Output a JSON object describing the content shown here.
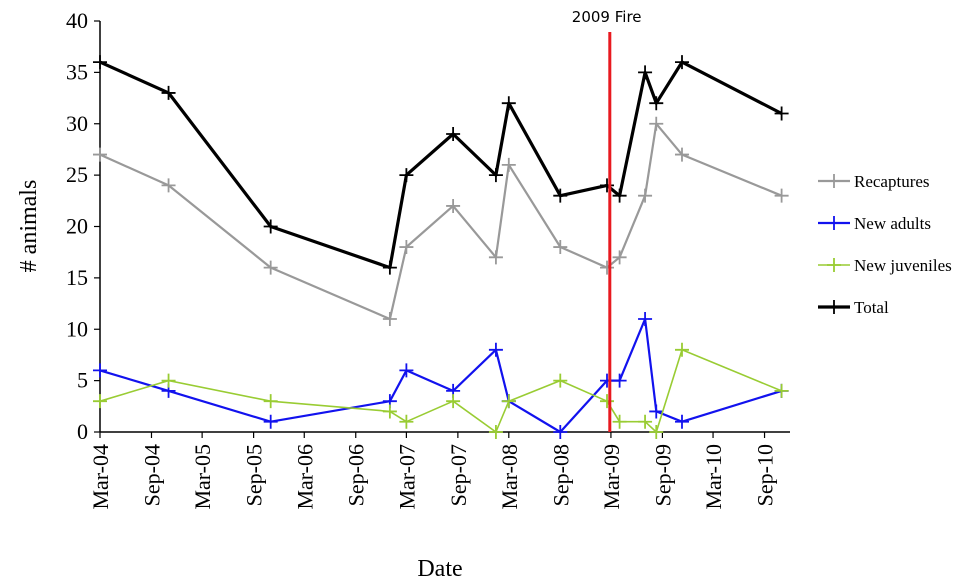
{
  "chart_data": {
    "type": "line",
    "title": "",
    "xlabel": "Date",
    "ylabel": "# animals",
    "ylim": [
      0,
      40
    ],
    "yticks": [
      0,
      5,
      10,
      15,
      20,
      25,
      30,
      35,
      40
    ],
    "xlim": [
      "2004-03-01",
      "2010-12-01"
    ],
    "xtick_values": [
      "2004-03-01",
      "2004-09-01",
      "2005-03-01",
      "2005-09-01",
      "2006-03-01",
      "2006-09-01",
      "2007-03-01",
      "2007-09-01",
      "2008-03-01",
      "2008-09-01",
      "2009-03-01",
      "2009-09-01",
      "2010-03-01",
      "2010-09-01"
    ],
    "xtick_labels": [
      "Mar-04",
      "Sep-04",
      "Mar-05",
      "Sep-05",
      "Mar-06",
      "Sep-06",
      "Mar-07",
      "Sep-07",
      "Mar-08",
      "Sep-08",
      "Mar-09",
      "Sep-09",
      "Mar-10",
      "Sep-10"
    ],
    "grid": false,
    "legend_position": "right",
    "annotation": {
      "label": "2009 Fire",
      "x": "2009-02-25",
      "color": "#e8191f"
    },
    "series": [
      {
        "name": "Recaptures",
        "color": "#999999",
        "x": [
          "2004-03-01",
          "2004-11-01",
          "2005-11-01",
          "2007-01-01",
          "2007-03-01",
          "2007-08-15",
          "2008-01-15",
          "2008-03-01",
          "2008-09-01",
          "2009-02-15",
          "2009-04-01",
          "2009-07-01",
          "2009-08-10",
          "2009-11-10",
          "2010-11-01"
        ],
        "values": [
          27,
          24,
          16,
          11,
          18,
          22,
          17,
          26,
          18,
          16,
          17,
          23,
          30,
          27,
          23
        ]
      },
      {
        "name": "New adults",
        "color": "#1212ee",
        "x": [
          "2004-03-01",
          "2004-11-01",
          "2005-11-01",
          "2007-01-01",
          "2007-03-01",
          "2007-08-15",
          "2008-01-15",
          "2008-03-01",
          "2008-09-01",
          "2009-02-15",
          "2009-04-01",
          "2009-07-01",
          "2009-08-10",
          "2009-11-10",
          "2010-11-01"
        ],
        "values": [
          6,
          4,
          1,
          3,
          6,
          4,
          8,
          3,
          0,
          5,
          5,
          11,
          2,
          1,
          4
        ]
      },
      {
        "name": "New juveniles",
        "color": "#99cc33",
        "x": [
          "2004-03-01",
          "2004-11-01",
          "2005-11-01",
          "2007-01-01",
          "2007-03-01",
          "2007-08-15",
          "2008-01-15",
          "2008-03-01",
          "2008-09-01",
          "2009-02-15",
          "2009-04-01",
          "2009-07-01",
          "2009-08-10",
          "2009-11-10",
          "2010-11-01"
        ],
        "values": [
          3,
          5,
          3,
          2,
          1,
          3,
          0,
          3,
          5,
          3,
          1,
          1,
          0,
          8,
          4
        ]
      },
      {
        "name": "Total",
        "color": "#000000",
        "x": [
          "2004-03-01",
          "2004-11-01",
          "2005-11-01",
          "2007-01-01",
          "2007-03-01",
          "2007-08-15",
          "2008-01-15",
          "2008-03-01",
          "2008-09-01",
          "2009-02-15",
          "2009-04-01",
          "2009-07-01",
          "2009-08-10",
          "2009-11-10",
          "2010-11-01"
        ],
        "values": [
          36,
          33,
          20,
          16,
          25,
          29,
          25,
          32,
          23,
          24,
          23,
          35,
          32,
          36,
          31
        ]
      }
    ]
  }
}
